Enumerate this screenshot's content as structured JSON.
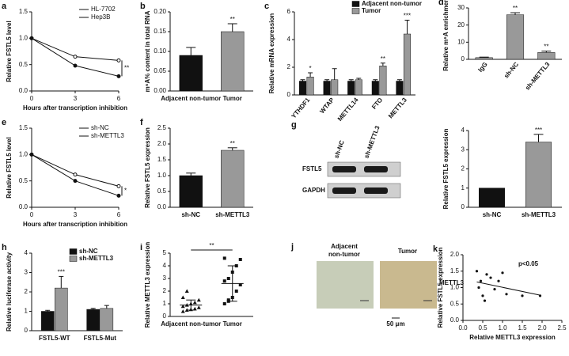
{
  "chart_data": [
    {
      "type": "line",
      "panel": "a",
      "x": [
        0,
        3,
        6
      ],
      "xlim": [
        0,
        6
      ],
      "xticks": [
        0,
        3,
        6
      ],
      "ylim": [
        0,
        1.5
      ],
      "yticks": [
        {
          "value": 0,
          "label": "0.0"
        },
        0.5,
        {
          "value": 1,
          "label": "1.0"
        },
        1.5
      ],
      "xlabel": "Hours after transcription inhibition",
      "ylabel": "Relative FSTL5 level",
      "annotations": [
        "**"
      ],
      "series": [
        {
          "name": "HL-7702",
          "color": "#111111",
          "values": [
            1.0,
            0.65,
            0.58
          ]
        },
        {
          "name": "Hep3B",
          "color": "#111111",
          "values": [
            1.0,
            0.48,
            0.28
          ]
        }
      ]
    },
    {
      "type": "bar",
      "panel": "b",
      "categories": [
        "Adjacent non-tumor",
        "Tumor"
      ],
      "values": [
        0.09,
        0.15
      ],
      "errors": [
        0.02,
        0.02
      ],
      "colors": [
        "#111111",
        "#999999"
      ],
      "ylim": [
        0,
        0.2
      ],
      "yticks": [
        {
          "value": 0,
          "label": "0.00"
        },
        0.05,
        {
          "value": 0.1,
          "label": "0.10"
        },
        0.15,
        {
          "value": 0.2,
          "label": "0.20"
        }
      ],
      "ylabel": "m⁶A% content in total RNA",
      "annotations": [
        "**"
      ]
    },
    {
      "type": "grouped",
      "panel": "c",
      "categories": [
        "YTHDF1",
        "WTAP",
        "METTL14",
        "FTO",
        "METTL3"
      ],
      "ylim": [
        0,
        6
      ],
      "yticks": [
        0,
        2,
        4,
        6
      ],
      "ylabel": "Relative mRNA expression",
      "annotations": [
        "*",
        "**",
        "***"
      ],
      "series": [
        {
          "name": "Adjacent non-tumor",
          "color": "#111111",
          "values": [
            1,
            1,
            1,
            1,
            1
          ],
          "errors": [
            0.1,
            0.1,
            0.1,
            0.1,
            0.1
          ]
        },
        {
          "name": "Tumor",
          "color": "#999999",
          "values": [
            1.3,
            1.1,
            1.1,
            2.1,
            4.4
          ],
          "errors": [
            0.3,
            0.8,
            0.1,
            0.2,
            1.0
          ]
        }
      ]
    },
    {
      "type": "bar",
      "panel": "d",
      "categories": [
        "IgG",
        "sh-NC",
        "sh-METTL3"
      ],
      "values": [
        1,
        26,
        4
      ],
      "errors": [
        0.3,
        1.2,
        0.8
      ],
      "colors": [
        "#999999",
        "#999999",
        "#999999"
      ],
      "ylim": [
        0,
        30
      ],
      "yticks": [
        0,
        10,
        20,
        30
      ],
      "ylabel": "Relative m⁶A enrichment",
      "annotations": [
        "**",
        "**"
      ]
    },
    {
      "type": "line",
      "panel": "e",
      "x": [
        0,
        3,
        6
      ],
      "xlim": [
        0,
        6
      ],
      "xticks": [
        0,
        3,
        6
      ],
      "ylim": [
        0,
        1.5
      ],
      "yticks": [
        {
          "value": 0,
          "label": "0.0"
        },
        0.5,
        {
          "value": 1,
          "label": "1.0"
        },
        1.5
      ],
      "xlabel": "Hours after transcription inhibition",
      "ylabel": "Relative FSTL5 level",
      "annotations": [
        "*"
      ],
      "series": [
        {
          "name": "sh-NC",
          "color": "#111111",
          "values": [
            1.0,
            0.62,
            0.4
          ]
        },
        {
          "name": "sh-METTL3",
          "color": "#111111",
          "values": [
            1.0,
            0.5,
            0.22
          ]
        }
      ]
    },
    {
      "type": "bar",
      "panel": "f",
      "categories": [
        "sh-NC",
        "sh-METTL3"
      ],
      "values": [
        1.0,
        1.8
      ],
      "errors": [
        0.08,
        0.08
      ],
      "colors": [
        "#111111",
        "#999999"
      ],
      "ylim": [
        0,
        2.5
      ],
      "yticks": [
        {
          "value": 0,
          "label": "0.0"
        },
        0.5,
        {
          "value": 1,
          "label": "1.0"
        },
        1.5,
        {
          "value": 2,
          "label": "2.0"
        },
        2.5
      ],
      "ylabel": "Relative FSTL5 expression",
      "annotations": [
        "**"
      ]
    },
    {
      "type": "bar",
      "categories": [
        "sh-NC",
        "sh-METTL3"
      ],
      "values": [
        1.0,
        3.4
      ],
      "errors": [
        0,
        0.4
      ],
      "colors": [
        "#111111",
        "#999999"
      ],
      "ylim": [
        0,
        4
      ],
      "yticks": [
        0,
        1,
        2,
        3,
        4
      ],
      "ylabel": "Relative FSTL5 expression",
      "annotations": [
        "***"
      ]
    },
    {
      "type": "grouped",
      "panel": "h",
      "categories": [
        "FSTL5-WT",
        "FSTL5-Mut"
      ],
      "ylim": [
        0,
        4
      ],
      "yticks": [
        0,
        1,
        2,
        3,
        4
      ],
      "ylabel": "Relative luciferase activity",
      "annotations": [
        "***"
      ],
      "series": [
        {
          "name": "sh-NC",
          "color": "#111111",
          "values": [
            1.0,
            1.1
          ],
          "errors": [
            0.05,
            0.05
          ]
        },
        {
          "name": "sh-METTL3",
          "color": "#999999",
          "values": [
            2.2,
            1.15
          ],
          "errors": [
            0.6,
            0.15
          ]
        }
      ]
    },
    {
      "type": "dot",
      "panel": "i",
      "categories": [
        "Adjacent non-tumor",
        "Tumor"
      ],
      "points": [
        [
          0.4,
          0.5,
          0.55,
          0.6,
          0.7,
          0.8,
          0.9,
          1.0,
          1.1,
          1.3,
          1.5,
          2.0
        ],
        [
          1.0,
          1.2,
          1.5,
          2.0,
          2.5,
          2.8,
          3.0,
          3.5,
          4.0,
          4.5,
          4.6,
          1.3
        ]
      ],
      "means": [
        0.9,
        2.6
      ],
      "sd": [
        0.4,
        1.4
      ],
      "ylim": [
        0,
        5
      ],
      "yticks": [
        0,
        1,
        2,
        3,
        4,
        5
      ],
      "ylabel": "Relative METTL3 expression",
      "annotations": [
        "**"
      ]
    },
    {
      "type": "scatter",
      "panel": "k",
      "x": [
        0.35,
        0.4,
        0.5,
        0.6,
        0.7,
        0.8,
        0.9,
        1.0,
        1.1,
        1.5,
        1.95,
        0.45,
        0.55
      ],
      "y": [
        1.5,
        1.0,
        0.75,
        1.4,
        1.3,
        0.95,
        1.2,
        1.45,
        0.8,
        0.75,
        0.75,
        1.2,
        0.6
      ],
      "xlim": [
        0,
        2.5
      ],
      "xticks": [
        {
          "value": 0,
          "label": "0.0"
        },
        0.5,
        {
          "value": 1,
          "label": "1.0"
        },
        1.5,
        {
          "value": 2,
          "label": "2.0"
        },
        2.5
      ],
      "ylim": [
        0,
        2
      ],
      "yticks": [
        {
          "value": 0,
          "label": "0.0"
        },
        0.5,
        {
          "value": 1,
          "label": "1.0"
        },
        1.5,
        {
          "value": 2,
          "label": "2.0"
        }
      ],
      "xlabel": "Relative METTL3 expression",
      "ylabel": "Relative FSTL5 expression",
      "annotations": [
        "p<0.05"
      ]
    }
  ],
  "blot": {
    "panel": "g",
    "lanes": [
      "sh-NC",
      "sh-METTL3"
    ],
    "bands": [
      "FSTL5",
      "GAPDH"
    ]
  },
  "ihc": {
    "panel": "j",
    "columns": [
      [
        "Adjacent",
        "non-tumor"
      ],
      [
        "Tumor"
      ]
    ],
    "stain": "METTL3",
    "scale": "50 μm"
  }
}
